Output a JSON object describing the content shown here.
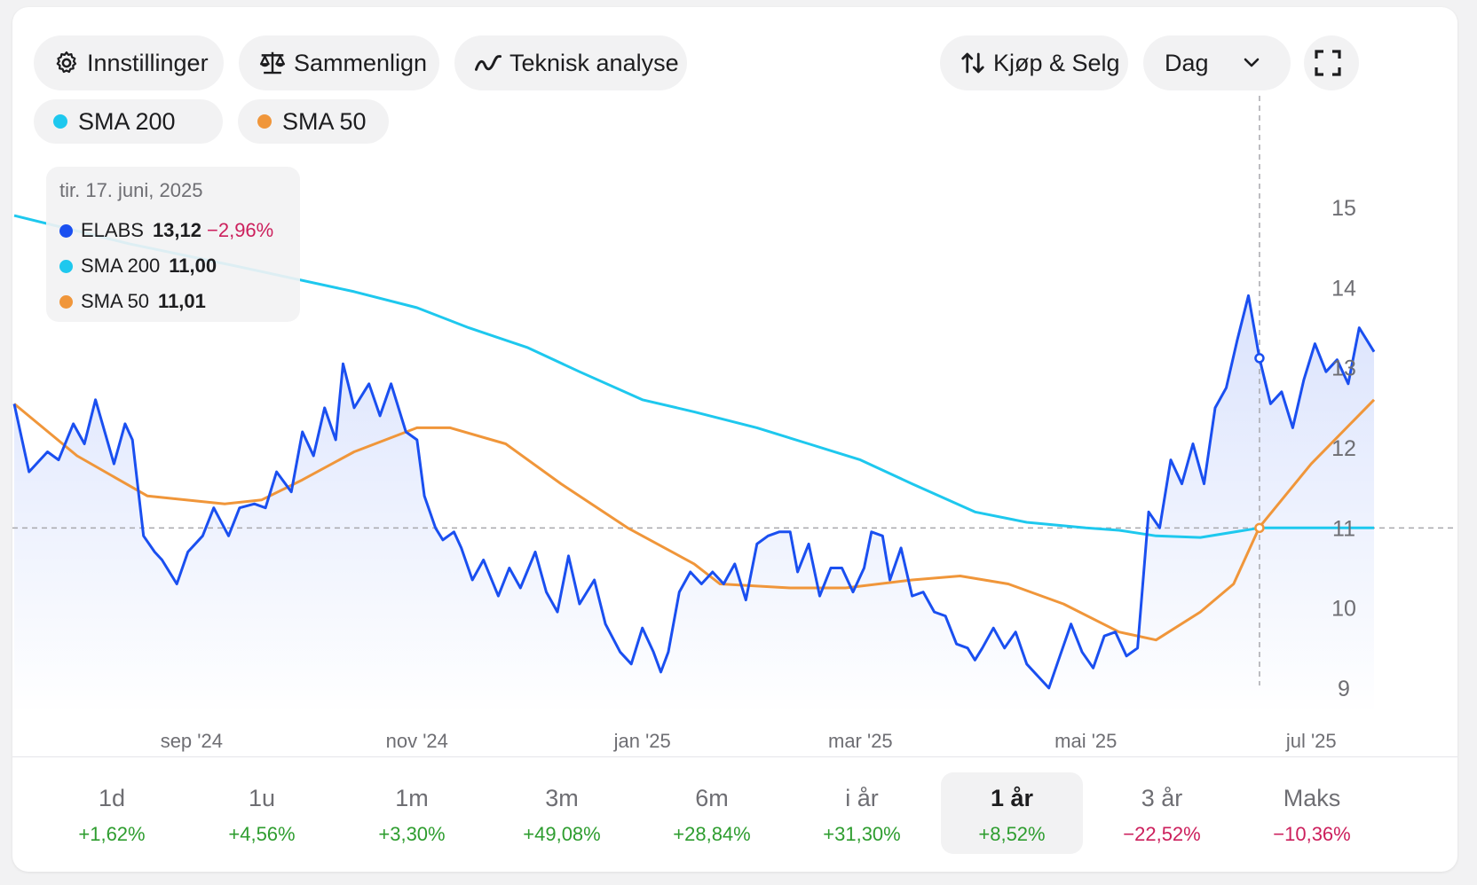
{
  "toolbar": {
    "settings_label": "Innstillinger",
    "compare_label": "Sammenlign",
    "technical_label": "Teknisk analyse",
    "trade_label": "Kjøp & Selg",
    "interval_value": "Dag"
  },
  "indicators": [
    {
      "label": "SMA 200",
      "color": "#1ec8ee"
    },
    {
      "label": "SMA 50",
      "color": "#f0963a"
    }
  ],
  "tooltip": {
    "date": "tir. 17. juni, 2025",
    "rows": [
      {
        "name": "ELABS",
        "value": "13,12",
        "change": "−2,96%",
        "color": "#1a4ff0"
      },
      {
        "name": "SMA 200",
        "value": "11,00",
        "change": "",
        "color": "#1ec8ee"
      },
      {
        "name": "SMA 50",
        "value": "11,01",
        "change": "",
        "color": "#f0963a"
      }
    ]
  },
  "chart_data": {
    "type": "line",
    "x_start": "2024-07-15",
    "x_end": "2025-07-18",
    "x_ticks": [
      {
        "label": "sep '24",
        "date": "2024-09-01"
      },
      {
        "label": "nov '24",
        "date": "2024-11-01"
      },
      {
        "label": "jan '25",
        "date": "2025-01-01"
      },
      {
        "label": "mar '25",
        "date": "2025-03-01"
      },
      {
        "label": "mai '25",
        "date": "2025-05-01"
      },
      {
        "label": "jul '25",
        "date": "2025-07-01"
      }
    ],
    "y_ticks": [
      9,
      10,
      11,
      12,
      13,
      14,
      15
    ],
    "ylim": [
      8.7,
      15.4
    ],
    "y_axis_position": "right",
    "crosshair": {
      "date": "2025-06-17",
      "value": 11.0
    },
    "series": [
      {
        "name": "ELABS",
        "color": "#1a4ff0",
        "points": [
          [
            "2024-07-15",
            12.55
          ],
          [
            "2024-07-19",
            11.7
          ],
          [
            "2024-07-24",
            11.95
          ],
          [
            "2024-07-27",
            11.85
          ],
          [
            "2024-07-31",
            12.3
          ],
          [
            "2024-08-03",
            12.05
          ],
          [
            "2024-08-06",
            12.6
          ],
          [
            "2024-08-11",
            11.8
          ],
          [
            "2024-08-14",
            12.3
          ],
          [
            "2024-08-16",
            12.1
          ],
          [
            "2024-08-19",
            10.9
          ],
          [
            "2024-08-22",
            10.7
          ],
          [
            "2024-08-24",
            10.6
          ],
          [
            "2024-08-28",
            10.3
          ],
          [
            "2024-08-31",
            10.7
          ],
          [
            "2024-09-04",
            10.9
          ],
          [
            "2024-09-07",
            11.25
          ],
          [
            "2024-09-11",
            10.9
          ],
          [
            "2024-09-14",
            11.25
          ],
          [
            "2024-09-18",
            11.3
          ],
          [
            "2024-09-21",
            11.25
          ],
          [
            "2024-09-24",
            11.7
          ],
          [
            "2024-09-28",
            11.45
          ],
          [
            "2024-10-01",
            12.2
          ],
          [
            "2024-10-04",
            11.9
          ],
          [
            "2024-10-07",
            12.5
          ],
          [
            "2024-10-10",
            12.1
          ],
          [
            "2024-10-12",
            13.05
          ],
          [
            "2024-10-15",
            12.5
          ],
          [
            "2024-10-19",
            12.8
          ],
          [
            "2024-10-22",
            12.4
          ],
          [
            "2024-10-25",
            12.8
          ],
          [
            "2024-10-29",
            12.2
          ],
          [
            "2024-11-01",
            12.1
          ],
          [
            "2024-11-03",
            11.4
          ],
          [
            "2024-11-06",
            11.0
          ],
          [
            "2024-11-08",
            10.85
          ],
          [
            "2024-11-11",
            10.95
          ],
          [
            "2024-11-13",
            10.75
          ],
          [
            "2024-11-16",
            10.35
          ],
          [
            "2024-11-19",
            10.6
          ],
          [
            "2024-11-23",
            10.15
          ],
          [
            "2024-11-26",
            10.5
          ],
          [
            "2024-11-29",
            10.25
          ],
          [
            "2024-12-03",
            10.7
          ],
          [
            "2024-12-06",
            10.2
          ],
          [
            "2024-12-09",
            9.95
          ],
          [
            "2024-12-12",
            10.65
          ],
          [
            "2024-12-15",
            10.05
          ],
          [
            "2024-12-19",
            10.35
          ],
          [
            "2024-12-22",
            9.8
          ],
          [
            "2024-12-26",
            9.45
          ],
          [
            "2024-12-29",
            9.3
          ],
          [
            "2025-01-01",
            9.75
          ],
          [
            "2025-01-04",
            9.45
          ],
          [
            "2025-01-06",
            9.2
          ],
          [
            "2025-01-08",
            9.45
          ],
          [
            "2025-01-11",
            10.2
          ],
          [
            "2025-01-14",
            10.45
          ],
          [
            "2025-01-17",
            10.3
          ],
          [
            "2025-01-20",
            10.45
          ],
          [
            "2025-01-23",
            10.3
          ],
          [
            "2025-01-26",
            10.55
          ],
          [
            "2025-01-29",
            10.1
          ],
          [
            "2025-02-01",
            10.8
          ],
          [
            "2025-02-04",
            10.9
          ],
          [
            "2025-02-07",
            10.95
          ],
          [
            "2025-02-10",
            10.95
          ],
          [
            "2025-02-12",
            10.45
          ],
          [
            "2025-02-15",
            10.8
          ],
          [
            "2025-02-18",
            10.15
          ],
          [
            "2025-02-21",
            10.5
          ],
          [
            "2025-02-24",
            10.5
          ],
          [
            "2025-02-27",
            10.2
          ],
          [
            "2025-03-02",
            10.5
          ],
          [
            "2025-03-04",
            10.95
          ],
          [
            "2025-03-07",
            10.9
          ],
          [
            "2025-03-09",
            10.35
          ],
          [
            "2025-03-12",
            10.75
          ],
          [
            "2025-03-15",
            10.15
          ],
          [
            "2025-03-18",
            10.2
          ],
          [
            "2025-03-21",
            9.95
          ],
          [
            "2025-03-24",
            9.9
          ],
          [
            "2025-03-27",
            9.55
          ],
          [
            "2025-03-30",
            9.5
          ],
          [
            "2025-04-01",
            9.35
          ],
          [
            "2025-04-03",
            9.5
          ],
          [
            "2025-04-06",
            9.75
          ],
          [
            "2025-04-09",
            9.5
          ],
          [
            "2025-04-12",
            9.7
          ],
          [
            "2025-04-15",
            9.3
          ],
          [
            "2025-04-18",
            9.15
          ],
          [
            "2025-04-21",
            9.0
          ],
          [
            "2025-04-24",
            9.4
          ],
          [
            "2025-04-27",
            9.8
          ],
          [
            "2025-04-30",
            9.45
          ],
          [
            "2025-05-03",
            9.25
          ],
          [
            "2025-05-06",
            9.65
          ],
          [
            "2025-05-09",
            9.7
          ],
          [
            "2025-05-12",
            9.4
          ],
          [
            "2025-05-15",
            9.5
          ],
          [
            "2025-05-18",
            11.2
          ],
          [
            "2025-05-21",
            11.0
          ],
          [
            "2025-05-24",
            11.85
          ],
          [
            "2025-05-27",
            11.55
          ],
          [
            "2025-05-30",
            12.05
          ],
          [
            "2025-06-02",
            11.55
          ],
          [
            "2025-06-05",
            12.5
          ],
          [
            "2025-06-08",
            12.75
          ],
          [
            "2025-06-11",
            13.35
          ],
          [
            "2025-06-14",
            13.9
          ],
          [
            "2025-06-17",
            13.12
          ],
          [
            "2025-06-20",
            12.55
          ],
          [
            "2025-06-23",
            12.7
          ],
          [
            "2025-06-26",
            12.25
          ],
          [
            "2025-06-29",
            12.85
          ],
          [
            "2025-07-02",
            13.3
          ],
          [
            "2025-07-05",
            12.95
          ],
          [
            "2025-07-08",
            13.1
          ],
          [
            "2025-07-11",
            12.8
          ],
          [
            "2025-07-14",
            13.5
          ],
          [
            "2025-07-18",
            13.2
          ]
        ]
      },
      {
        "name": "SMA 200",
        "color": "#1ec8ee",
        "points": [
          [
            "2024-07-15",
            14.9
          ],
          [
            "2024-08-15",
            14.55
          ],
          [
            "2024-09-15",
            14.25
          ],
          [
            "2024-10-15",
            13.95
          ],
          [
            "2024-11-01",
            13.75
          ],
          [
            "2024-11-15",
            13.5
          ],
          [
            "2024-12-01",
            13.25
          ],
          [
            "2024-12-15",
            12.95
          ],
          [
            "2025-01-01",
            12.6
          ],
          [
            "2025-01-15",
            12.45
          ],
          [
            "2025-02-01",
            12.25
          ],
          [
            "2025-02-15",
            12.05
          ],
          [
            "2025-03-01",
            11.85
          ],
          [
            "2025-03-15",
            11.55
          ],
          [
            "2025-04-01",
            11.2
          ],
          [
            "2025-04-15",
            11.07
          ],
          [
            "2025-05-01",
            11.0
          ],
          [
            "2025-05-10",
            10.97
          ],
          [
            "2025-05-20",
            10.9
          ],
          [
            "2025-06-01",
            10.88
          ],
          [
            "2025-06-17",
            11.0
          ],
          [
            "2025-07-18",
            11.0
          ]
        ]
      },
      {
        "name": "SMA 50",
        "color": "#f0963a",
        "points": [
          [
            "2024-07-15",
            12.55
          ],
          [
            "2024-08-01",
            11.9
          ],
          [
            "2024-08-20",
            11.4
          ],
          [
            "2024-09-10",
            11.3
          ],
          [
            "2024-09-20",
            11.35
          ],
          [
            "2024-10-01",
            11.6
          ],
          [
            "2024-10-15",
            11.95
          ],
          [
            "2024-11-01",
            12.25
          ],
          [
            "2024-11-10",
            12.25
          ],
          [
            "2024-11-25",
            12.05
          ],
          [
            "2024-12-10",
            11.55
          ],
          [
            "2024-12-28",
            11.0
          ],
          [
            "2025-01-15",
            10.55
          ],
          [
            "2025-01-22",
            10.3
          ],
          [
            "2025-02-10",
            10.25
          ],
          [
            "2025-02-25",
            10.25
          ],
          [
            "2025-03-15",
            10.35
          ],
          [
            "2025-03-28",
            10.4
          ],
          [
            "2025-04-10",
            10.3
          ],
          [
            "2025-04-25",
            10.05
          ],
          [
            "2025-05-10",
            9.7
          ],
          [
            "2025-05-20",
            9.6
          ],
          [
            "2025-06-01",
            9.95
          ],
          [
            "2025-06-10",
            10.3
          ],
          [
            "2025-06-17",
            11.01
          ],
          [
            "2025-07-01",
            11.8
          ],
          [
            "2025-07-18",
            12.6
          ]
        ]
      }
    ]
  },
  "periods": [
    {
      "label": "1d",
      "change": "+1,62%",
      "sign": "pos"
    },
    {
      "label": "1u",
      "change": "+4,56%",
      "sign": "pos"
    },
    {
      "label": "1m",
      "change": "+3,30%",
      "sign": "pos"
    },
    {
      "label": "3m",
      "change": "+49,08%",
      "sign": "pos"
    },
    {
      "label": "6m",
      "change": "+28,84%",
      "sign": "pos"
    },
    {
      "label": "i år",
      "change": "+31,30%",
      "sign": "pos"
    },
    {
      "label": "1 år",
      "change": "+8,52%",
      "sign": "pos",
      "active": true
    },
    {
      "label": "3 år",
      "change": "−22,52%",
      "sign": "neg"
    },
    {
      "label": "Maks",
      "change": "−10,36%",
      "sign": "neg"
    }
  ]
}
